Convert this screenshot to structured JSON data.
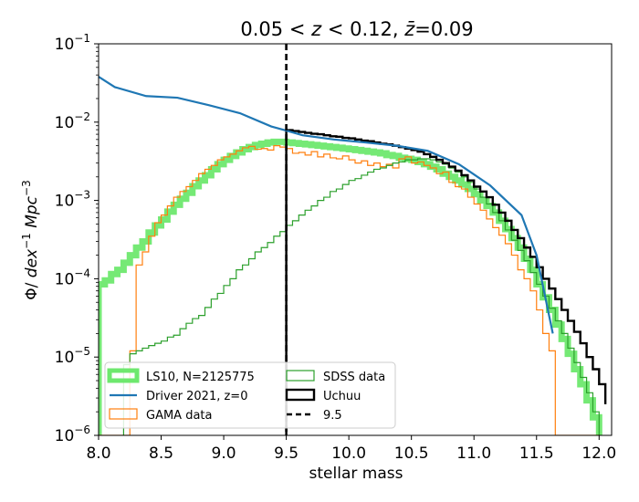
{
  "chart_data": {
    "type": "line",
    "title_parts": {
      "lower": "0.05",
      "lt1": " < ",
      "var": "z",
      "lt2": " < ",
      "upper": "0.12, ",
      "zbar": "z̄",
      "eq": "=0.09"
    },
    "xlabel": "stellar mass",
    "ylabel": {
      "phi": "Φ/ ",
      "dex": "dex",
      "dexexp": "−1",
      "mpc": " Mpc",
      "mpcexp": "−3"
    },
    "xlim": [
      8.0,
      12.1
    ],
    "ylim_log10": [
      -6,
      -1
    ],
    "xticks": [
      {
        "value": 8.0,
        "label": "8.0"
      },
      {
        "value": 8.5,
        "label": "8.5"
      },
      {
        "value": 9.0,
        "label": "9.0"
      },
      {
        "value": 9.5,
        "label": "9.5"
      },
      {
        "value": 10.0,
        "label": "10.0"
      },
      {
        "value": 10.5,
        "label": "10.5"
      },
      {
        "value": 11.0,
        "label": "11.0"
      },
      {
        "value": 11.5,
        "label": "11.5"
      },
      {
        "value": 12.0,
        "label": "12.0"
      }
    ],
    "yticks": [
      {
        "exp": -6,
        "base": "10",
        "sup": "−6"
      },
      {
        "exp": -5,
        "base": "10",
        "sup": "−5"
      },
      {
        "exp": -4,
        "base": "10",
        "sup": "−4"
      },
      {
        "exp": -3,
        "base": "10",
        "sup": "−3"
      },
      {
        "exp": -2,
        "base": "10",
        "sup": "−2"
      },
      {
        "exp": -1,
        "base": "10",
        "sup": "−1"
      }
    ],
    "series": [
      {
        "name": "LS10, N=2125775",
        "key": "ls10",
        "style": "step",
        "color": "#6ee86e",
        "edges": [
          8.0,
          8.05,
          8.1,
          8.15,
          8.2,
          8.25,
          8.3,
          8.35,
          8.4,
          8.45,
          8.5,
          8.55,
          8.6,
          8.65,
          8.7,
          8.75,
          8.8,
          8.85,
          8.9,
          8.95,
          9.0,
          9.05,
          9.1,
          9.15,
          9.2,
          9.25,
          9.3,
          9.35,
          9.4,
          9.45,
          9.5,
          9.55,
          9.6,
          9.65,
          9.7,
          9.75,
          9.8,
          9.85,
          9.9,
          9.95,
          10.0,
          10.05,
          10.1,
          10.15,
          10.2,
          10.25,
          10.3,
          10.35,
          10.4,
          10.45,
          10.5,
          10.55,
          10.6,
          10.65,
          10.7,
          10.75,
          10.8,
          10.85,
          10.9,
          10.95,
          11.0,
          11.05,
          11.1,
          11.15,
          11.2,
          11.25,
          11.3,
          11.35,
          11.4,
          11.45,
          11.5,
          11.55,
          11.6,
          11.65,
          11.7,
          11.75,
          11.8,
          11.85,
          11.9,
          11.95,
          12.0
        ],
        "values": [
          8.5e-05,
          9.5e-05,
          0.000115,
          0.00013,
          0.00016,
          0.0002,
          0.00025,
          0.0003,
          0.00039,
          0.00048,
          0.00057,
          0.00072,
          0.00088,
          0.00105,
          0.00125,
          0.00152,
          0.0018,
          0.0021,
          0.0025,
          0.0029,
          0.0033,
          0.0037,
          0.0041,
          0.0045,
          0.0048,
          0.0051,
          0.0053,
          0.0055,
          0.0056,
          0.0056,
          0.0055,
          0.0054,
          0.0053,
          0.0052,
          0.0051,
          0.005,
          0.0049,
          0.0048,
          0.0047,
          0.0046,
          0.0045,
          0.0044,
          0.0043,
          0.0042,
          0.0041,
          0.004,
          0.0038,
          0.0037,
          0.0035,
          0.0034,
          0.0033,
          0.0031,
          0.0029,
          0.0027,
          0.0025,
          0.0022,
          0.002,
          0.0018,
          0.0016,
          0.0014,
          0.0012,
          0.001,
          0.00085,
          0.0007,
          0.00055,
          0.00043,
          0.00033,
          0.00025,
          0.00018,
          0.00013,
          8.5e-05,
          5.8e-05,
          4e-05,
          2.6e-05,
          1.7e-05,
          1.1e-05,
          7e-06,
          4.5e-06,
          2.8e-06,
          1.7e-06
        ]
      },
      {
        "name": "Driver 2021, z=0",
        "key": "driver",
        "style": "line",
        "color": "#1f77b4",
        "x": [
          8.0,
          8.13,
          8.38,
          8.63,
          8.88,
          9.13,
          9.38,
          9.5,
          9.63,
          9.88,
          10.13,
          10.38,
          10.63,
          10.88,
          11.13,
          11.38,
          11.5,
          11.63
        ],
        "y": [
          0.038,
          0.028,
          0.0215,
          0.0205,
          0.0165,
          0.013,
          0.0088,
          0.0078,
          0.0068,
          0.006,
          0.0055,
          0.005,
          0.0043,
          0.0029,
          0.00155,
          0.00065,
          0.0002,
          2e-05
        ]
      },
      {
        "name": "GAMA data",
        "key": "gama",
        "style": "step",
        "color": "#ff7f0e",
        "edges": [
          8.0,
          8.05,
          8.1,
          8.15,
          8.2,
          8.25,
          8.3,
          8.35,
          8.4,
          8.45,
          8.5,
          8.55,
          8.6,
          8.65,
          8.7,
          8.75,
          8.8,
          8.85,
          8.9,
          8.95,
          9.0,
          9.05,
          9.1,
          9.15,
          9.2,
          9.25,
          9.3,
          9.35,
          9.4,
          9.45,
          9.5,
          9.55,
          9.6,
          9.65,
          9.7,
          9.75,
          9.8,
          9.85,
          9.9,
          9.95,
          10.0,
          10.05,
          10.1,
          10.15,
          10.2,
          10.25,
          10.3,
          10.35,
          10.4,
          10.45,
          10.5,
          10.55,
          10.6,
          10.65,
          10.7,
          10.75,
          10.8,
          10.85,
          10.9,
          10.95,
          11.0,
          11.05,
          11.1,
          11.15,
          11.2,
          11.25,
          11.3,
          11.35,
          11.4,
          11.45,
          11.5,
          11.55,
          11.6,
          11.65,
          11.7,
          11.75,
          11.8,
          11.85,
          11.9,
          11.95,
          12.0
        ],
        "values": [
          1e-06,
          1e-06,
          1e-06,
          1e-06,
          1e-06,
          1.2e-05,
          0.00015,
          0.00022,
          0.00035,
          0.00052,
          0.00065,
          0.00085,
          0.0011,
          0.0013,
          0.0015,
          0.0018,
          0.0022,
          0.0025,
          0.0028,
          0.0033,
          0.0036,
          0.0039,
          0.0043,
          0.0047,
          0.0049,
          0.0045,
          0.0046,
          0.0044,
          0.005,
          0.0048,
          0.0046,
          0.004,
          0.0041,
          0.0038,
          0.0042,
          0.0036,
          0.0039,
          0.0035,
          0.0034,
          0.0037,
          0.0033,
          0.003,
          0.0032,
          0.0028,
          0.003,
          0.0027,
          0.0029,
          0.0026,
          0.0034,
          0.0036,
          0.003,
          0.0031,
          0.0028,
          0.0026,
          0.0022,
          0.0023,
          0.0017,
          0.0015,
          0.0014,
          0.0011,
          0.0009,
          0.00075,
          0.00058,
          0.00045,
          0.00036,
          0.00028,
          0.0002,
          0.00013,
          0.0001,
          7e-05,
          4e-05,
          2e-05,
          1.2e-05,
          1e-06,
          1e-06,
          1e-06,
          1e-06,
          1e-06,
          1e-06,
          1e-06
        ]
      },
      {
        "name": "SDSS data",
        "key": "sdss",
        "style": "step",
        "color": "#2ca02c",
        "edges": [
          8.2,
          8.25,
          8.3,
          8.35,
          8.4,
          8.45,
          8.5,
          8.55,
          8.6,
          8.65,
          8.7,
          8.75,
          8.8,
          8.85,
          8.9,
          8.95,
          9.0,
          9.05,
          9.1,
          9.15,
          9.2,
          9.25,
          9.3,
          9.35,
          9.4,
          9.45,
          9.5,
          9.55,
          9.6,
          9.65,
          9.7,
          9.75,
          9.8,
          9.85,
          9.9,
          9.95,
          10.0,
          10.05,
          10.1,
          10.15,
          10.2,
          10.25,
          10.3,
          10.35,
          10.4,
          10.45,
          10.5,
          10.55,
          10.6,
          10.65,
          10.7,
          10.75,
          10.8,
          10.85,
          10.9,
          10.95,
          11.0,
          11.05,
          11.1,
          11.15,
          11.2,
          11.25,
          11.3,
          11.35,
          11.4,
          11.45,
          11.5,
          11.55,
          11.6,
          11.65,
          11.7,
          11.75,
          11.8,
          11.85,
          11.9,
          11.95,
          12.0
        ],
        "values": [
          8e-06,
          1.1e-05,
          1.2e-05,
          1.3e-05,
          1.4e-05,
          1.5e-05,
          1.6e-05,
          1.8e-05,
          1.9e-05,
          2.3e-05,
          2.7e-05,
          3.1e-05,
          3.4e-05,
          4.3e-05,
          5.5e-05,
          6.5e-05,
          8.2e-05,
          0.0001,
          0.00013,
          0.00015,
          0.00018,
          0.00022,
          0.00025,
          0.00029,
          0.00035,
          0.0004,
          0.00048,
          0.00055,
          0.00065,
          0.00075,
          0.00085,
          0.001,
          0.0011,
          0.0013,
          0.0014,
          0.0016,
          0.0018,
          0.0019,
          0.0021,
          0.0023,
          0.0025,
          0.0026,
          0.0028,
          0.003,
          0.0031,
          0.0033,
          0.0033,
          0.0034,
          0.0034,
          0.0033,
          0.0031,
          0.0029,
          0.0026,
          0.0023,
          0.002,
          0.0017,
          0.0014,
          0.0011,
          0.0009,
          0.0007,
          0.00055,
          0.00042,
          0.00031,
          0.00023,
          0.00017,
          0.00012,
          8.5e-05,
          6e-05,
          4.2e-05,
          2.9e-05,
          2e-05,
          1.3e-05,
          8.5e-06,
          5.5e-06,
          3.5e-06,
          2e-06
        ]
      },
      {
        "name": "Uchuu",
        "key": "uchuu",
        "style": "step",
        "color": "#000000",
        "edges": [
          9.5,
          9.55,
          9.6,
          9.65,
          9.7,
          9.75,
          9.8,
          9.85,
          9.9,
          9.95,
          10.0,
          10.05,
          10.1,
          10.15,
          10.2,
          10.25,
          10.3,
          10.35,
          10.4,
          10.45,
          10.5,
          10.55,
          10.6,
          10.65,
          10.7,
          10.75,
          10.8,
          10.85,
          10.9,
          10.95,
          11.0,
          11.05,
          11.1,
          11.15,
          11.2,
          11.25,
          11.3,
          11.35,
          11.4,
          11.45,
          11.5,
          11.55,
          11.6,
          11.65,
          11.7,
          11.75,
          11.8,
          11.85,
          11.9,
          11.95,
          12.0,
          12.05
        ],
        "values": [
          0.0079,
          0.0077,
          0.0075,
          0.0073,
          0.0071,
          0.007,
          0.0068,
          0.0066,
          0.0065,
          0.0063,
          0.0062,
          0.006,
          0.0058,
          0.0057,
          0.0055,
          0.0053,
          0.0052,
          0.005,
          0.0048,
          0.0046,
          0.0044,
          0.0042,
          0.0039,
          0.0036,
          0.0033,
          0.003,
          0.0027,
          0.0024,
          0.0021,
          0.0018,
          0.0015,
          0.0013,
          0.0011,
          0.00088,
          0.0007,
          0.00055,
          0.00042,
          0.00033,
          0.00025,
          0.00019,
          0.00014,
          0.0001,
          7.5e-05,
          5.5e-05,
          4e-05,
          2.9e-05,
          2.1e-05,
          1.5e-05,
          1e-05,
          7e-06,
          4.5e-06,
          2.5e-06
        ]
      },
      {
        "name": "9.5",
        "key": "cut",
        "style": "vline",
        "color": "#000000",
        "x": 9.5
      }
    ],
    "legend_order": [
      "ls10",
      "driver",
      "gama",
      "sdss",
      "uchuu",
      "cut"
    ],
    "legend_position": "lower-center",
    "grid": false
  }
}
